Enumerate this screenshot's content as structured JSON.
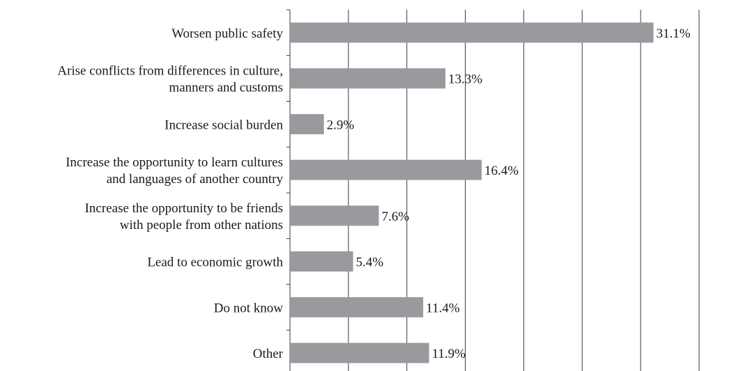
{
  "chart_data": {
    "type": "bar",
    "orientation": "horizontal",
    "title": "",
    "xlabel": "",
    "ylabel": "",
    "categories": [
      [
        "Worsen public safety"
      ],
      [
        "Arise conflicts from differences in culture,",
        "manners and customs"
      ],
      [
        "Increase social burden"
      ],
      [
        "Increase the opportunity to learn cultures",
        "and languages of another country"
      ],
      [
        "Increase the opportunity to be friends",
        "with people from other nations"
      ],
      [
        "Lead to economic growth"
      ],
      [
        "Do not know"
      ],
      [
        "Other"
      ]
    ],
    "values": [
      31.1,
      13.3,
      2.9,
      16.4,
      7.6,
      5.4,
      11.4,
      11.9
    ],
    "value_labels": [
      "31.1%",
      "13.3%",
      "2.9%",
      "16.4%",
      "7.6%",
      "5.4%",
      "11.4%",
      "11.9%"
    ],
    "xlim": [
      0,
      35
    ],
    "grid_step": 5,
    "grid": "vertical",
    "legend": "none",
    "bar_color": "#999a9e",
    "line_color": "#3a3a3a"
  }
}
